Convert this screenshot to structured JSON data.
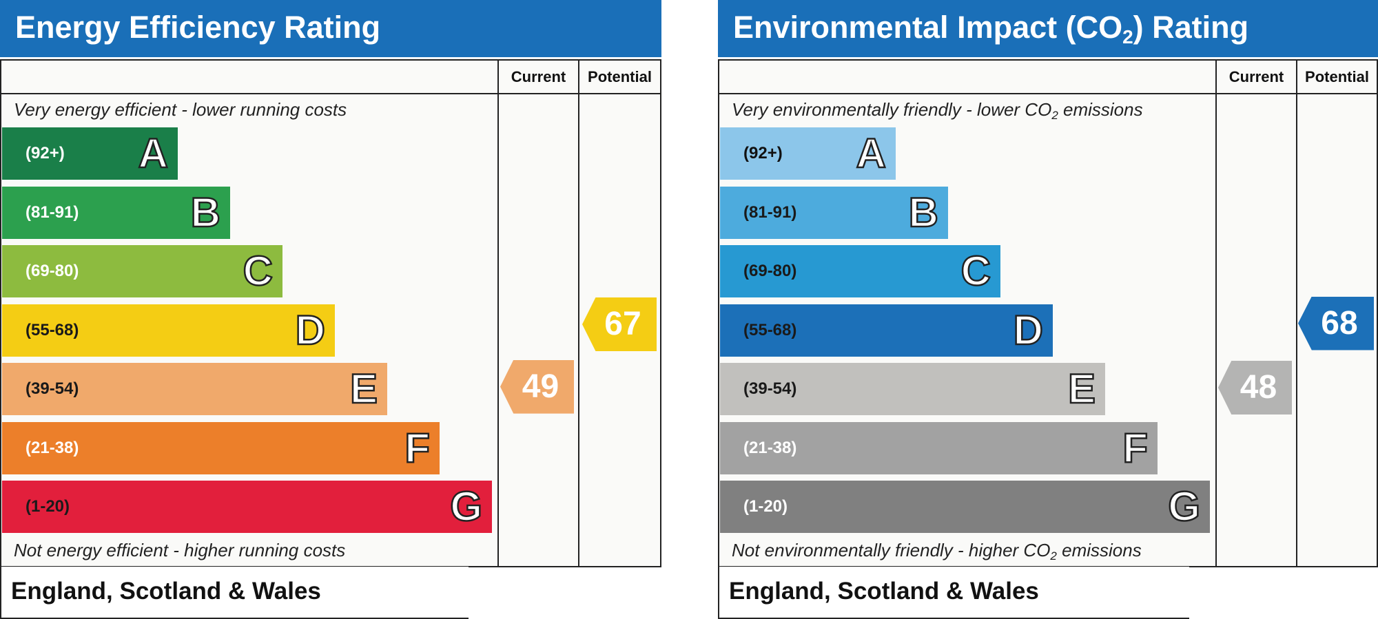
{
  "chart_data": [
    {
      "type": "bar",
      "title": "Energy Efficiency Rating",
      "columns": [
        "Current",
        "Potential"
      ],
      "top_caption": "Very energy efficient - lower running costs",
      "bottom_caption": "Not energy efficient - higher running costs",
      "footer": "England, Scotland & Wales",
      "bands": [
        {
          "letter": "A",
          "range": "(92+)",
          "color": "#1a7f49",
          "text_color": "#ffffff"
        },
        {
          "letter": "B",
          "range": "(81-91)",
          "color": "#2ca04e",
          "text_color": "#ffffff"
        },
        {
          "letter": "C",
          "range": "(69-80)",
          "color": "#8dbb3f",
          "text_color": "#ffffff"
        },
        {
          "letter": "D",
          "range": "(55-68)",
          "color": "#f4cd14",
          "text_color": "#1a1a1a"
        },
        {
          "letter": "E",
          "range": "(39-54)",
          "color": "#f0a96b",
          "text_color": "#1a1a1a"
        },
        {
          "letter": "F",
          "range": "(21-38)",
          "color": "#ec7f2a",
          "text_color": "#ffffff"
        },
        {
          "letter": "G",
          "range": "(1-20)",
          "color": "#e21f3c",
          "text_color": "#1a1a1a"
        }
      ],
      "current": {
        "value": 49,
        "band": "E",
        "color": "#f0a96b"
      },
      "potential": {
        "value": 67,
        "band": "D",
        "color": "#f4cd14"
      }
    },
    {
      "type": "bar",
      "title_main": "Environmental Impact (CO",
      "title_sub": "2",
      "title_end": ") Rating",
      "columns": [
        "Current",
        "Potential"
      ],
      "top_caption_main": "Very environmentally friendly - lower CO",
      "top_caption_sub": "2",
      "top_caption_end": " emissions",
      "bottom_caption_main": "Not environmentally friendly - higher CO",
      "bottom_caption_sub": "2",
      "bottom_caption_end": " emissions",
      "footer": "England, Scotland & Wales",
      "bands": [
        {
          "letter": "A",
          "range": "(92+)",
          "color": "#8cc6ea",
          "text_color": "#111111"
        },
        {
          "letter": "B",
          "range": "(81-91)",
          "color": "#4dabdd",
          "text_color": "#1a1a1a"
        },
        {
          "letter": "C",
          "range": "(69-80)",
          "color": "#2799d2",
          "text_color": "#1a1a1a"
        },
        {
          "letter": "D",
          "range": "(55-68)",
          "color": "#1c70b8",
          "text_color": "#1a1a1a"
        },
        {
          "letter": "E",
          "range": "(39-54)",
          "color": "#c1c0bd",
          "text_color": "#1a1a1a"
        },
        {
          "letter": "F",
          "range": "(21-38)",
          "color": "#a2a2a2",
          "text_color": "#ffffff"
        },
        {
          "letter": "G",
          "range": "(1-20)",
          "color": "#808080",
          "text_color": "#ffffff"
        }
      ],
      "current": {
        "value": 48,
        "band": "E",
        "color": "#b4b4b3"
      },
      "potential": {
        "value": 68,
        "band": "D",
        "color": "#1c70b8"
      }
    }
  ]
}
